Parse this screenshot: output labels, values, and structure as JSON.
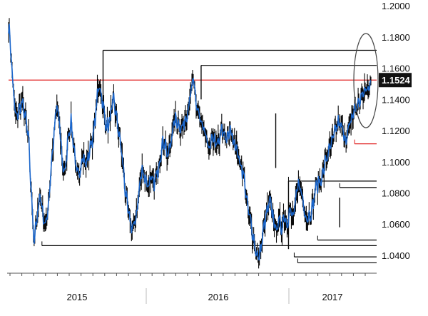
{
  "chart_data": {
    "type": "line",
    "title": "",
    "xlabel": "",
    "ylabel": "",
    "ylim": [
      1.029,
      1.201
    ],
    "grid": false,
    "y_axis_side": "right",
    "x_tick_labels": [
      "2015",
      "2016",
      "2017"
    ],
    "y_tick_labels": [
      "1.2000",
      "1.1800",
      "1.1600",
      "1.1400",
      "1.1200",
      "1.1000",
      "1.0800",
      "1.0600",
      "1.0400"
    ],
    "last_price_label": "1.1524",
    "last_price": 1.1524,
    "colors": {
      "price_line": "#1a66cc",
      "price_bars": "#0a0a0a",
      "reference_line": "#e02020",
      "level_lines": "#000000",
      "axis": "#555555",
      "label_box": "#111111",
      "label_text": "#ffffff",
      "ellipse": "#444444"
    },
    "series": [
      {
        "anchors": [
          [
            0,
            1.186
          ],
          [
            2,
            1.18
          ],
          [
            6,
            1.15
          ],
          [
            10,
            1.128
          ],
          [
            14,
            1.132
          ],
          [
            18,
            1.138
          ],
          [
            22,
            1.133
          ],
          [
            28,
            1.115
          ],
          [
            32,
            1.08
          ],
          [
            36,
            1.05
          ],
          [
            40,
            1.062
          ],
          [
            44,
            1.08
          ],
          [
            48,
            1.068
          ],
          [
            52,
            1.058
          ],
          [
            56,
            1.072
          ],
          [
            60,
            1.097
          ],
          [
            64,
            1.117
          ],
          [
            68,
            1.137
          ],
          [
            72,
            1.122
          ],
          [
            76,
            1.098
          ],
          [
            80,
            1.093
          ],
          [
            84,
            1.118
          ],
          [
            88,
            1.125
          ],
          [
            92,
            1.11
          ],
          [
            96,
            1.092
          ],
          [
            100,
            1.09
          ],
          [
            104,
            1.107
          ],
          [
            108,
            1.098
          ],
          [
            112,
            1.102
          ],
          [
            116,
            1.112
          ],
          [
            120,
            1.118
          ],
          [
            124,
            1.138
          ],
          [
            128,
            1.15
          ],
          [
            132,
            1.14
          ],
          [
            136,
            1.126
          ],
          [
            140,
            1.122
          ],
          [
            144,
            1.13
          ],
          [
            148,
            1.14
          ],
          [
            152,
            1.128
          ],
          [
            156,
            1.116
          ],
          [
            160,
            1.103
          ],
          [
            164,
            1.083
          ],
          [
            168,
            1.068
          ],
          [
            172,
            1.06
          ],
          [
            176,
            1.057
          ],
          [
            180,
            1.067
          ],
          [
            184,
            1.082
          ],
          [
            188,
            1.096
          ],
          [
            192,
            1.09
          ],
          [
            196,
            1.085
          ],
          [
            200,
            1.088
          ],
          [
            204,
            1.086
          ],
          [
            208,
            1.09
          ],
          [
            212,
            1.1
          ],
          [
            216,
            1.11
          ],
          [
            220,
            1.114
          ],
          [
            224,
            1.102
          ],
          [
            228,
            1.112
          ],
          [
            232,
            1.124
          ],
          [
            236,
            1.127
          ],
          [
            240,
            1.124
          ],
          [
            244,
            1.121
          ],
          [
            248,
            1.127
          ],
          [
            252,
            1.133
          ],
          [
            256,
            1.142
          ],
          [
            260,
            1.152
          ],
          [
            264,
            1.138
          ],
          [
            268,
            1.13
          ],
          [
            272,
            1.122
          ],
          [
            276,
            1.118
          ],
          [
            280,
            1.112
          ],
          [
            284,
            1.108
          ],
          [
            288,
            1.117
          ],
          [
            292,
            1.11
          ],
          [
            296,
            1.112
          ],
          [
            300,
            1.12
          ],
          [
            304,
            1.118
          ],
          [
            308,
            1.114
          ],
          [
            312,
            1.12
          ],
          [
            316,
            1.116
          ],
          [
            320,
            1.11
          ],
          [
            324,
            1.102
          ],
          [
            328,
            1.097
          ],
          [
            332,
            1.088
          ],
          [
            336,
            1.072
          ],
          [
            340,
            1.063
          ],
          [
            344,
            1.053
          ],
          [
            348,
            1.043
          ],
          [
            352,
            1.037
          ],
          [
            356,
            1.047
          ],
          [
            360,
            1.06
          ],
          [
            364,
            1.068
          ],
          [
            368,
            1.074
          ],
          [
            372,
            1.066
          ],
          [
            376,
            1.056
          ],
          [
            380,
            1.062
          ],
          [
            384,
            1.058
          ],
          [
            388,
            1.066
          ],
          [
            392,
            1.061
          ],
          [
            396,
            1.069
          ],
          [
            400,
            1.064
          ],
          [
            404,
            1.073
          ],
          [
            408,
            1.087
          ],
          [
            412,
            1.081
          ],
          [
            416,
            1.07
          ],
          [
            420,
            1.064
          ],
          [
            424,
            1.066
          ],
          [
            428,
            1.071
          ],
          [
            432,
            1.083
          ],
          [
            436,
            1.086
          ],
          [
            440,
            1.089
          ],
          [
            444,
            1.096
          ],
          [
            448,
            1.103
          ],
          [
            452,
            1.108
          ],
          [
            456,
            1.113
          ],
          [
            460,
            1.12
          ],
          [
            464,
            1.125
          ],
          [
            468,
            1.122
          ],
          [
            472,
            1.118
          ],
          [
            476,
            1.115
          ],
          [
            480,
            1.123
          ],
          [
            484,
            1.13
          ],
          [
            488,
            1.134
          ],
          [
            492,
            1.137
          ],
          [
            496,
            1.141
          ],
          [
            500,
            1.144
          ],
          [
            504,
            1.147
          ],
          [
            508,
            1.15
          ],
          [
            510,
            1.152
          ]
        ],
        "anchors_note": "x index = daily sample number; y = exchange rate"
      }
    ],
    "level_lines": [
      {
        "y": 1.1715,
        "x_from": 133,
        "x_to": 528
      },
      {
        "y": 1.1618,
        "x_from": 271,
        "x_to": 528
      },
      {
        "y": 1.1524,
        "x_from": 0,
        "x_to": 528,
        "color": "red"
      },
      {
        "y": 1.1115,
        "x_from": 487,
        "x_to": 528,
        "color": "red"
      },
      {
        "y": 1.0876,
        "x_from": 394,
        "x_to": 528
      },
      {
        "y": 1.0835,
        "x_from": 466,
        "x_to": 528
      },
      {
        "y": 1.0498,
        "x_from": 435,
        "x_to": 528
      },
      {
        "y": 1.0462,
        "x_from": 47,
        "x_to": 528
      },
      {
        "y": 1.039,
        "x_from": 402,
        "x_to": 528
      },
      {
        "y": 1.0352,
        "x_from": 407,
        "x_to": 528
      }
    ],
    "spikes": [
      {
        "x": 133,
        "y_low": 1.128,
        "y_high": 1.1715
      },
      {
        "x": 271,
        "y_low": 1.14,
        "y_high": 1.1618
      },
      {
        "x": 376,
        "y_low": 1.096,
        "y_high": 1.131
      },
      {
        "x": 394,
        "y_low": 1.044,
        "y_high": 1.0876
      },
      {
        "x": 466,
        "y_low": 1.058,
        "y_high": 1.077
      }
    ]
  }
}
